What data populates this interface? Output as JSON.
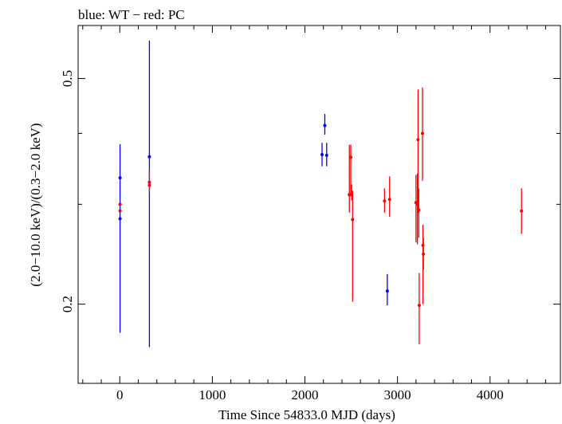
{
  "chart_data": {
    "type": "scatter",
    "title": "blue: WT − red: PC",
    "xlabel": "Time Since 54833.0 MJD (days)",
    "ylabel": "(2.0−10.0 keV)/(0.3−2.0 keV)",
    "x_scale": "linear",
    "y_scale": "log",
    "xlim": [
      -450,
      4760
    ],
    "ylim": [
      0.145,
      0.62
    ],
    "x_ticks": [
      0,
      1000,
      2000,
      3000,
      4000
    ],
    "x_tick_labels": [
      "0",
      "1000",
      "2000",
      "3000",
      "4000"
    ],
    "y_ticks": [
      0.2,
      0.5
    ],
    "y_tick_labels": [
      "0.2",
      "0.5"
    ],
    "y_minor_ticks": [
      0.3,
      0.4
    ],
    "grid": false,
    "legend": "none",
    "series": [
      {
        "color": "#0000ff",
        "points": [
          {
            "x": 3,
            "y": 0.334,
            "ylo": 0.178,
            "yhi": 0.383
          },
          {
            "x": 3,
            "y": 0.283,
            "ylo": 0.283,
            "yhi": 0.283
          },
          {
            "x": 320,
            "y": 0.364,
            "ylo": 0.168,
            "yhi": 0.583
          },
          {
            "x": 2185,
            "y": 0.367,
            "ylo": 0.35,
            "yhi": 0.385
          },
          {
            "x": 2215,
            "y": 0.413,
            "ylo": 0.398,
            "yhi": 0.433
          },
          {
            "x": 2235,
            "y": 0.366,
            "ylo": 0.35,
            "yhi": 0.385
          },
          {
            "x": 2890,
            "y": 0.211,
            "ylo": 0.199,
            "yhi": 0.226
          }
        ]
      },
      {
        "color": "#ff0000",
        "points": [
          {
            "x": 3,
            "y": 0.3,
            "ylo": 0.3,
            "yhi": 0.3
          },
          {
            "x": 3,
            "y": 0.292,
            "ylo": 0.292,
            "yhi": 0.292
          },
          {
            "x": 320,
            "y": 0.328,
            "ylo": 0.315,
            "yhi": 0.345
          },
          {
            "x": 320,
            "y": 0.324,
            "ylo": 0.324,
            "yhi": 0.324
          },
          {
            "x": 2480,
            "y": 0.312,
            "ylo": 0.29,
            "yhi": 0.382
          },
          {
            "x": 2495,
            "y": 0.363,
            "ylo": 0.31,
            "yhi": 0.382
          },
          {
            "x": 2505,
            "y": 0.312,
            "ylo": 0.305,
            "yhi": 0.325
          },
          {
            "x": 2515,
            "y": 0.282,
            "ylo": 0.202,
            "yhi": 0.317
          },
          {
            "x": 2860,
            "y": 0.304,
            "ylo": 0.29,
            "yhi": 0.32
          },
          {
            "x": 2915,
            "y": 0.306,
            "ylo": 0.285,
            "yhi": 0.336
          },
          {
            "x": 3200,
            "y": 0.302,
            "ylo": 0.257,
            "yhi": 0.338
          },
          {
            "x": 3215,
            "y": 0.3,
            "ylo": 0.255,
            "yhi": 0.34
          },
          {
            "x": 3222,
            "y": 0.39,
            "ylo": 0.29,
            "yhi": 0.478
          },
          {
            "x": 3230,
            "y": 0.293,
            "ylo": 0.262,
            "yhi": 0.32
          },
          {
            "x": 3235,
            "y": 0.199,
            "ylo": 0.17,
            "yhi": 0.227
          },
          {
            "x": 3270,
            "y": 0.4,
            "ylo": 0.33,
            "yhi": 0.482
          },
          {
            "x": 3275,
            "y": 0.254,
            "ylo": 0.2,
            "yhi": 0.276
          },
          {
            "x": 3280,
            "y": 0.245,
            "ylo": 0.23,
            "yhi": 0.262
          },
          {
            "x": 4340,
            "y": 0.292,
            "ylo": 0.266,
            "yhi": 0.32
          }
        ]
      }
    ]
  }
}
